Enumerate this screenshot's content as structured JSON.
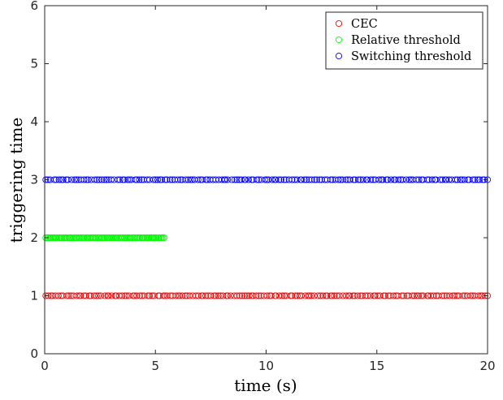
{
  "chart_data": {
    "type": "scatter",
    "title": "",
    "xlabel": "time (s)",
    "ylabel": "triggering time",
    "xlim": [
      0,
      20
    ],
    "ylim": [
      0,
      6
    ],
    "xticks": [
      0,
      5,
      10,
      15,
      20
    ],
    "yticks": [
      0,
      1,
      2,
      3,
      4,
      5,
      6
    ],
    "xtick_labels": [
      "0",
      "5",
      "10",
      "15",
      "20"
    ],
    "ytick_labels": [
      "0",
      "1",
      "2",
      "3",
      "4",
      "5",
      "6"
    ],
    "grid": false,
    "legend_position": "top-right",
    "marker": "open-circle",
    "series": [
      {
        "name": "CEC",
        "color": "#ff0000",
        "y": 1,
        "x_range": [
          0.05,
          20.0
        ],
        "approx_count": 175
      },
      {
        "name": "Relative threshold",
        "color": "#00ff00",
        "y": 2,
        "x_range": [
          0.05,
          5.4
        ],
        "approx_count": 95
      },
      {
        "name": "Switching threshold",
        "color": "#0000ff",
        "y": 3,
        "x_range": [
          0.05,
          20.0
        ],
        "approx_count": 175
      }
    ]
  }
}
